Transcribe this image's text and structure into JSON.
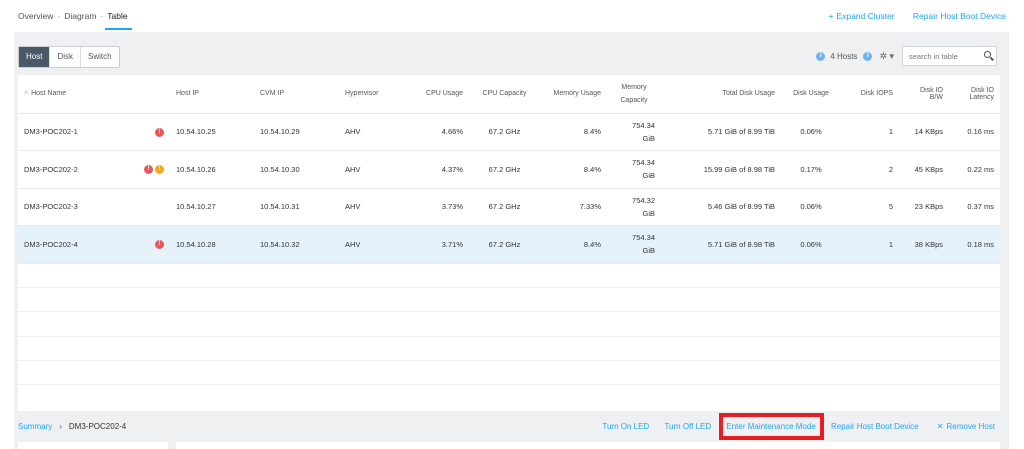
{
  "nav": {
    "breadcrumb": [
      "Overview",
      "Diagram",
      "Table"
    ],
    "actions": {
      "expand_cluster": "Expand Cluster",
      "repair_boot": "Repair Host Boot Device"
    }
  },
  "toolbar": {
    "tabs": [
      "Host",
      "Disk",
      "Switch"
    ],
    "active_tab": "Host",
    "hosts_count": "4 Hosts",
    "search_placeholder": "search in table"
  },
  "table": {
    "headers": [
      "Host Name",
      "Host IP",
      "CVM IP",
      "Hypervisor",
      "CPU Usage",
      "CPU Capacity",
      "Memory Usage",
      "Memory Capacity",
      "Total Disk Usage",
      "Disk Usage",
      "Disk IOPS",
      "Disk IO B/W",
      "Disk IO Latency"
    ],
    "rows": [
      {
        "name": "DM3-POC202-1",
        "alerts": [
          "red"
        ],
        "host_ip": "10.54.10.25",
        "cvm_ip": "10.54.10.29",
        "hypervisor": "AHV",
        "cpu_usage": "4.66%",
        "cpu_capacity": "67.2 GHz",
        "mem_usage": "8.4%",
        "mem_cap_1": "754.34",
        "mem_cap_2": "GiB",
        "total_disk": "5.71 GiB of 8.99 TiB",
        "disk_usage": "0.06%",
        "iops": "1",
        "bw": "14 KBps",
        "latency": "0.16 ms"
      },
      {
        "name": "DM3-POC202-2",
        "alerts": [
          "red",
          "orange"
        ],
        "host_ip": "10.54.10.26",
        "cvm_ip": "10.54.10.30",
        "hypervisor": "AHV",
        "cpu_usage": "4.37%",
        "cpu_capacity": "67.2 GHz",
        "mem_usage": "8.4%",
        "mem_cap_1": "754.34",
        "mem_cap_2": "GiB",
        "total_disk": "15.99 GiB of 8.98 TiB",
        "disk_usage": "0.17%",
        "iops": "2",
        "bw": "45 KBps",
        "latency": "0.22 ms"
      },
      {
        "name": "DM3-POC202-3",
        "alerts": [],
        "host_ip": "10.54.10.27",
        "cvm_ip": "10.54.10.31",
        "hypervisor": "AHV",
        "cpu_usage": "3.73%",
        "cpu_capacity": "67.2 GHz",
        "mem_usage": "7.33%",
        "mem_cap_1": "754.32",
        "mem_cap_2": "GiB",
        "total_disk": "5.46 GiB of 8.99 TiB",
        "disk_usage": "0.06%",
        "iops": "5",
        "bw": "23 KBps",
        "latency": "0.37 ms"
      },
      {
        "name": "DM3-POC202-4",
        "alerts": [
          "red"
        ],
        "host_ip": "10.54.10.28",
        "cvm_ip": "10.54.10.32",
        "hypervisor": "AHV",
        "cpu_usage": "3.71%",
        "cpu_capacity": "67.2 GHz",
        "mem_usage": "8.4%",
        "mem_cap_1": "754.34",
        "mem_cap_2": "GiB",
        "total_disk": "5.71 GiB of 8.98 TiB",
        "disk_usage": "0.06%",
        "iops": "1",
        "bw": "38 KBps",
        "latency": "0.18 ms"
      }
    ]
  },
  "bottom": {
    "summary": "Summary",
    "selected_host": "DM3-POC202-4",
    "actions": [
      "Turn On LED",
      "Turn Off LED",
      "Enter Maintenance Mode",
      "Repair Host Boot Device",
      "Remove Host"
    ]
  },
  "colors": {
    "accent": "#22a5f7",
    "highlight": "#e61f25",
    "selected_row": "#e6f2fb",
    "alert_red": "#e65a5a",
    "alert_orange": "#f5a623"
  }
}
